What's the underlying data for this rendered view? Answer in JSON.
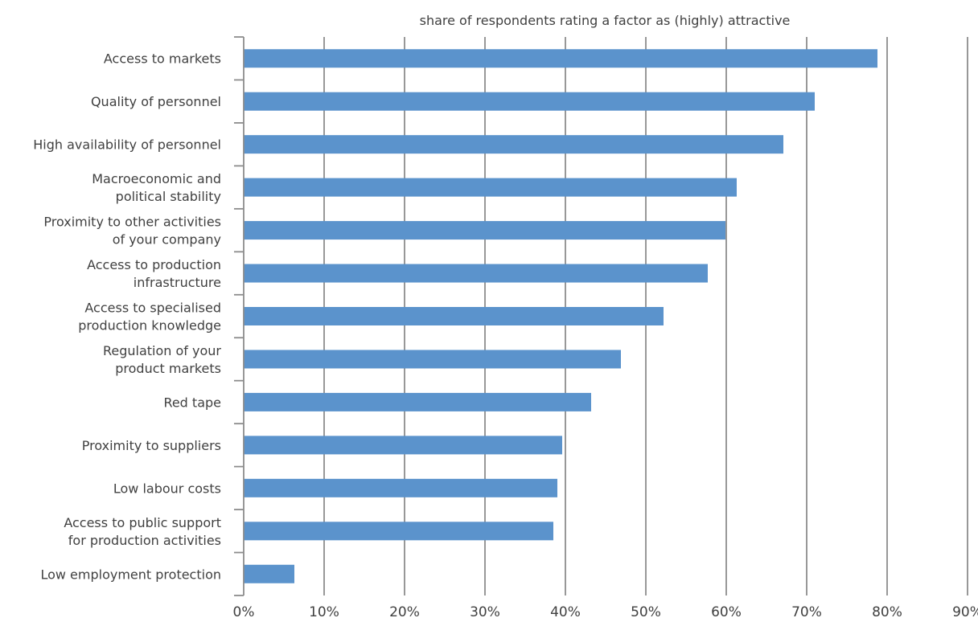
{
  "chart_data": {
    "type": "bar",
    "orientation": "horizontal",
    "title": "share of respondents rating a factor as (highly) attractive",
    "categories": [
      [
        "Access to markets"
      ],
      [
        "Quality of personnel"
      ],
      [
        "High availability of personnel"
      ],
      [
        "Macroeconomic and",
        "political stability"
      ],
      [
        "Proximity to other activities",
        "of your company"
      ],
      [
        "Access to production",
        "infrastructure"
      ],
      [
        "Access to specialised",
        "production knowledge"
      ],
      [
        "Regulation of your",
        "product markets"
      ],
      [
        "Red tape"
      ],
      [
        "Proximity to suppliers"
      ],
      [
        "Low labour costs"
      ],
      [
        "Access to public support",
        "for production activities"
      ],
      [
        "Low employment protection"
      ]
    ],
    "values": [
      78.8,
      71.0,
      67.1,
      61.3,
      59.9,
      57.7,
      52.2,
      46.9,
      43.2,
      39.6,
      39.0,
      38.5,
      6.3
    ],
    "xlim": [
      0,
      90
    ],
    "x_ticks": [
      0,
      10,
      20,
      30,
      40,
      50,
      60,
      70,
      80,
      90
    ],
    "x_tick_format": "%",
    "grid": true,
    "bar_color": "#5b93cc",
    "grid_color": "#8c8c8c"
  }
}
